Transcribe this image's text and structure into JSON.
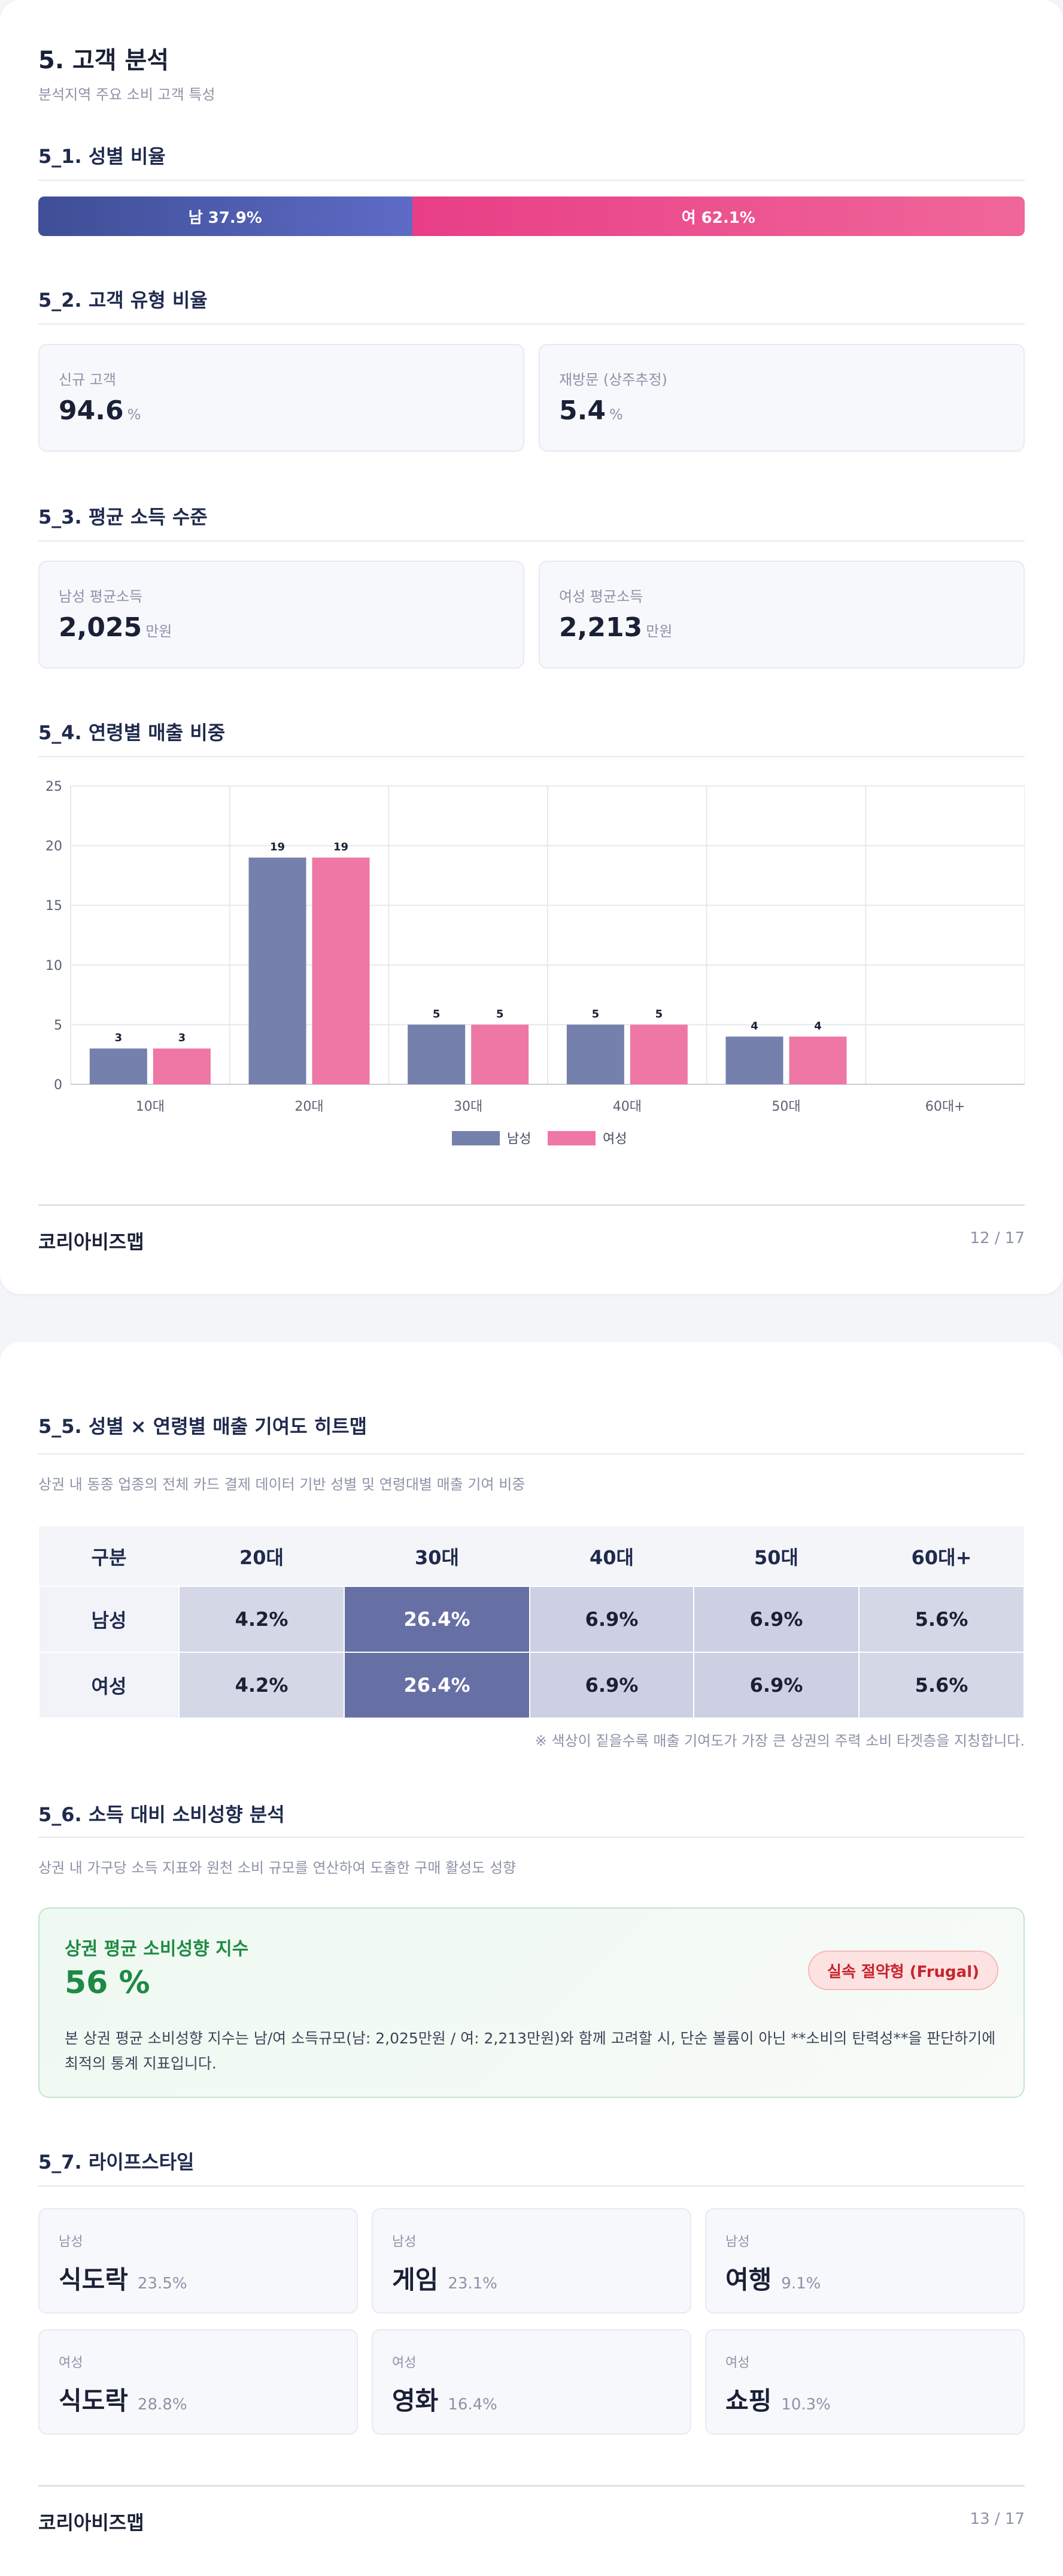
{
  "page1": {
    "title": "5. 고객 분석",
    "subtitle": "분석지역 주요 소비 고객 특성",
    "sec_gender": "5_1. 성별 비율",
    "gender_bar": {
      "male": "남 37.9%",
      "female": "여 62.1%",
      "male_share": 37.9,
      "female_share": 62.1,
      "male_color": "#4a58a8",
      "female_color": "#ea4b8b"
    },
    "sec_type": "5_2. 고객 유형 비율",
    "type_cards": [
      {
        "label": "신규 고객",
        "value": "94.6",
        "unit": "%"
      },
      {
        "label": "재방문 (상주추정)",
        "value": "5.4",
        "unit": "%"
      }
    ],
    "sec_income": "5_3. 평균 소득 수준",
    "income_cards": [
      {
        "label": "남성 평균소득",
        "value": "2,025",
        "unit": "만원"
      },
      {
        "label": "여성 평균소득",
        "value": "2,213",
        "unit": "만원"
      }
    ],
    "sec_age": "5_4. 연령별 매출 비중",
    "footer": {
      "brand": "코리아비즈맵",
      "page": "12 / 17"
    }
  },
  "chart_data": {
    "type": "bar",
    "categories": [
      "10대",
      "20대",
      "30대",
      "40대",
      "50대",
      "60대+"
    ],
    "series": [
      {
        "name": "남성",
        "values": [
          3,
          19,
          5,
          5,
          4,
          0
        ],
        "color": "#7580ac"
      },
      {
        "name": "여성",
        "values": [
          3,
          19,
          5,
          5,
          4,
          0
        ],
        "color": "#ee77a6"
      }
    ],
    "data_labels": [
      "3",
      "3",
      "19",
      "19",
      "5",
      "5",
      "5",
      "5",
      "4",
      "4"
    ],
    "yticks": [
      "0",
      "5",
      "10",
      "15",
      "20",
      "25"
    ],
    "ylim": [
      0,
      25
    ],
    "grid": true,
    "legend": "bottom-center",
    "title": "",
    "xlabel": "",
    "ylabel": ""
  },
  "page2": {
    "sec_heatmap": "5_5. 성별 × 연령별 매출 기여도 히트맵",
    "heatmap_desc": "상권 내 동종 업종의 전체 카드 결제 데이터 기반 성별 및 연령대별 매출 기여 비중",
    "heatmap": {
      "headers": [
        "구분",
        "20대",
        "30대",
        "40대",
        "50대",
        "60대+"
      ],
      "rows": [
        {
          "label": "남성",
          "cells": [
            "4.2%",
            "26.4%",
            "6.9%",
            "6.9%",
            "5.6%"
          ]
        },
        {
          "label": "여성",
          "cells": [
            "4.2%",
            "26.4%",
            "6.9%",
            "6.9%",
            "5.6%"
          ]
        }
      ]
    },
    "heatmap_note": "※ 색상이 짙을수록 매출 기여도가 가장 큰 상권의 주력 소비 타겟층을 지칭합니다.",
    "sec_spend": "5_6. 소득 대비 소비성향 분석",
    "spend_desc": "상권 내 가구당 소득 지표와 원천 소비 규모를 연산하여 도출한 구매 활성도 성향",
    "spend_card": {
      "title": "상권 평균 소비성향 지수",
      "value": "56 %",
      "badge": "실속 절약형 (Frugal)",
      "desc": "본 상권 평균 소비성향 지수는 남/여 소득규모(남: 2,025만원 / 여: 2,213만원)와 함께 고려할 시, 단순 볼륨이 아닌 **소비의 탄력성**을 판단하기에 최적의 통계 지표입니다."
    },
    "sec_lifestyle": "5_7. 라이프스타일",
    "lifestyle": [
      {
        "gender": "남성",
        "name": "식도락",
        "pct": "23.5%"
      },
      {
        "gender": "남성",
        "name": "게임",
        "pct": "23.1%"
      },
      {
        "gender": "남성",
        "name": "여행",
        "pct": "9.1%"
      },
      {
        "gender": "여성",
        "name": "식도락",
        "pct": "28.8%"
      },
      {
        "gender": "여성",
        "name": "영화",
        "pct": "16.4%"
      },
      {
        "gender": "여성",
        "name": "쇼핑",
        "pct": "10.3%"
      }
    ],
    "footer": {
      "brand": "코리아비즈맵",
      "page": "13 / 17"
    }
  }
}
